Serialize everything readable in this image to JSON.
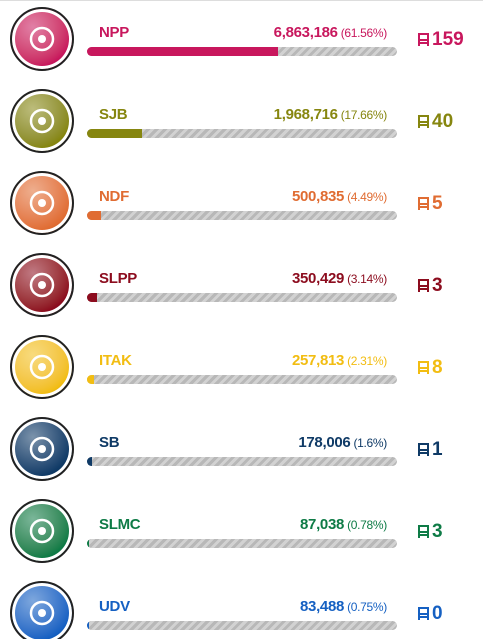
{
  "parties": [
    {
      "name": "NPP",
      "votes": "6,863,186",
      "pct_label": "(61.56%)",
      "pct": 61.56,
      "seats": 159,
      "color": "#c8175d"
    },
    {
      "name": "SJB",
      "votes": "1,968,716",
      "pct_label": "(17.66%)",
      "pct": 17.66,
      "seats": 40,
      "color": "#86860f"
    },
    {
      "name": "NDF",
      "votes": "500,835",
      "pct_label": "(4.49%)",
      "pct": 4.49,
      "seats": 5,
      "color": "#e06c32"
    },
    {
      "name": "SLPP",
      "votes": "350,429",
      "pct_label": "(3.14%)",
      "pct": 3.14,
      "seats": 3,
      "color": "#8c0c1e"
    },
    {
      "name": "ITAK",
      "votes": "257,813",
      "pct_label": "(2.31%)",
      "pct": 2.31,
      "seats": 8,
      "color": "#f2bd12"
    },
    {
      "name": "SB",
      "votes": "178,006",
      "pct_label": "(1.6%)",
      "pct": 1.6,
      "seats": 1,
      "color": "#0f3a66"
    },
    {
      "name": "SLMC",
      "votes": "87,038",
      "pct_label": "(0.78%)",
      "pct": 0.78,
      "seats": 3,
      "color": "#0e7b46"
    },
    {
      "name": "UDV",
      "votes": "83,488",
      "pct_label": "(0.75%)",
      "pct": 0.75,
      "seats": 0,
      "color": "#1560c2"
    }
  ]
}
